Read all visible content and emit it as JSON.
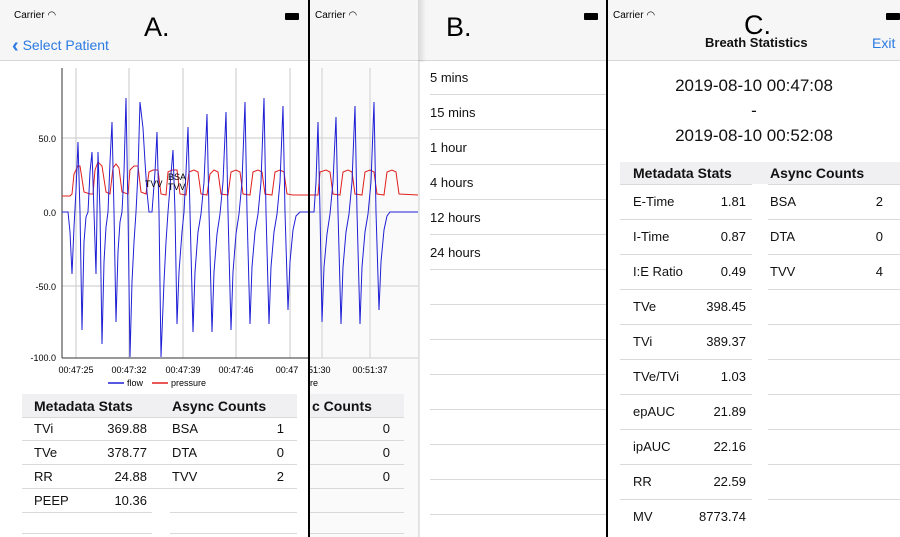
{
  "status": {
    "carrier": "Carrier"
  },
  "panel_a": {
    "label": "A.",
    "back_label": "Select Patient",
    "chart": {
      "y_ticks": [
        "50.0",
        "0.0",
        "-50.0",
        "-100.0"
      ],
      "x_ticks": [
        "00:47:25",
        "00:47:32",
        "00:47:39",
        "00:47:46",
        "00:47"
      ],
      "annotations": [
        "TVV",
        "BSA",
        "TVV"
      ],
      "legend": [
        "flow",
        "pressure"
      ]
    },
    "metadata_header": "Metadata Stats",
    "async_header": "Async Counts",
    "metadata": [
      {
        "label": "TVi",
        "value": "369.88"
      },
      {
        "label": "TVe",
        "value": "378.77"
      },
      {
        "label": "RR",
        "value": "24.88"
      },
      {
        "label": "PEEP",
        "value": "10.36"
      }
    ],
    "async": [
      {
        "label": "BSA",
        "value": "1"
      },
      {
        "label": "DTA",
        "value": "0"
      },
      {
        "label": "TVV",
        "value": "2"
      }
    ]
  },
  "panel_b": {
    "label": "B.",
    "back_chart": {
      "x_ticks": [
        ":51:30",
        "00:51:37"
      ],
      "legend_fragment": "re",
      "async_header_fragment": "c Counts",
      "async_values": [
        "0",
        "0",
        "0"
      ]
    },
    "time_options": [
      "5 mins",
      "15 mins",
      "1 hour",
      "4 hours",
      "12 hours",
      "24 hours"
    ]
  },
  "panel_c": {
    "label": "C.",
    "title": "Breath Statistics",
    "exit_label": "Exit",
    "start_time": "2019-08-10 00:47:08",
    "separator": "-",
    "end_time": "2019-08-10 00:52:08",
    "metadata_header": "Metadata Stats",
    "async_header": "Async Counts",
    "metadata": [
      {
        "label": "E-Time",
        "value": "1.81"
      },
      {
        "label": "I-Time",
        "value": "0.87"
      },
      {
        "label": "I:E Ratio",
        "value": "0.49"
      },
      {
        "label": "TVe",
        "value": "398.45"
      },
      {
        "label": "TVi",
        "value": "389.37"
      },
      {
        "label": "TVe/TVi",
        "value": "1.03"
      },
      {
        "label": "epAUC",
        "value": "21.89"
      },
      {
        "label": "ipAUC",
        "value": "22.16"
      },
      {
        "label": "RR",
        "value": "22.59"
      },
      {
        "label": "MV",
        "value": "8773.74"
      }
    ],
    "async": [
      {
        "label": "BSA",
        "value": "2"
      },
      {
        "label": "DTA",
        "value": "0"
      },
      {
        "label": "TVV",
        "value": "4"
      }
    ]
  },
  "colors": {
    "flow": "#1f1fd6",
    "pressure": "#e0201f",
    "accent": "#2a7ae2"
  }
}
